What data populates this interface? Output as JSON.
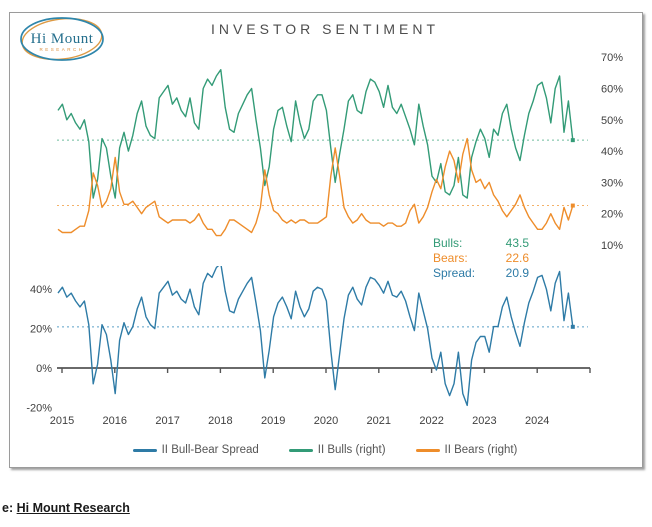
{
  "header": {
    "title": "INVESTOR SENTIMENT",
    "logo_line1": "Hi Mount",
    "logo_line2": "RESEARCH"
  },
  "source": {
    "prefix": "e:",
    "link_text": "Hi Mount Research"
  },
  "annotation": {
    "rows": [
      {
        "label": "Bulls:",
        "value": "43.5",
        "series": "bulls"
      },
      {
        "label": "Bears:",
        "value": "22.6",
        "series": "bears"
      },
      {
        "label": "Spread:",
        "value": "20.9",
        "series": "spread"
      }
    ]
  },
  "legend": {
    "items": [
      {
        "label": "II Bull-Bear Spread",
        "series": "spread"
      },
      {
        "label": "II Bulls (right)",
        "series": "bulls"
      },
      {
        "label": "II Bears (right)",
        "series": "bears"
      }
    ]
  },
  "colors": {
    "bulls": "#339b77",
    "bears": "#ee8d2b",
    "spread": "#2e7ba6",
    "bulls_ref": "#6fbc9e",
    "bears_ref": "#f4b269",
    "spread_ref": "#5aa0c8",
    "axis": "#555555",
    "title": "#4d4d4d",
    "logo_teal": "#2e86ab",
    "logo_orange": "#dd9a44"
  },
  "chart_data": {
    "type": "line",
    "title": "INVESTOR SENTIMENT",
    "x_start_year": 2015,
    "cadence": "monthly",
    "x_tick_labels": [
      "2015",
      "2016",
      "2017",
      "2018",
      "2019",
      "2020",
      "2021",
      "2022",
      "2023",
      "2024"
    ],
    "panels": [
      {
        "name": "sentiment",
        "axis_side": "right",
        "ylim": [
          8,
          72
        ],
        "yticks": [
          {
            "v": 70,
            "label": "70%"
          },
          {
            "v": 60,
            "label": "60%"
          },
          {
            "v": 50,
            "label": "50%"
          },
          {
            "v": 40,
            "label": "40%"
          },
          {
            "v": 30,
            "label": "30%"
          },
          {
            "v": 20,
            "label": "20%"
          },
          {
            "v": 10,
            "label": "10%"
          }
        ],
        "grid": false,
        "reference_lines": [
          {
            "value": 43.5,
            "series": "bulls"
          },
          {
            "value": 22.6,
            "series": "bears"
          }
        ],
        "series": [
          {
            "name": "II Bulls (right)",
            "key": "bulls",
            "current": 43.5,
            "values": [
              53,
              55,
              50,
              52,
              49,
              47,
              50,
              43,
              25,
              31,
              44,
              41,
              32,
              25,
              41,
              46,
              40,
              45,
              52,
              56,
              48,
              45,
              44,
              57,
              59,
              61,
              55,
              57,
              53,
              51,
              57,
              49,
              47,
              60,
              63,
              61,
              64,
              66,
              54,
              47,
              46,
              52,
              55,
              58,
              60,
              50,
              41,
              29,
              35,
              47,
              53,
              54,
              48,
              43,
              56,
              49,
              44,
              47,
              56,
              58,
              58,
              53,
              41,
              30,
              39,
              47,
              56,
              58,
              53,
              52,
              59,
              63,
              62,
              59,
              54,
              61,
              54,
              52,
              55,
              51,
              47,
              42,
              55,
              48,
              42,
              32,
              30,
              36,
              27,
              26,
              29,
              38,
              26,
              25,
              38,
              43,
              47,
              44,
              38,
              47,
              45,
              52,
              55,
              47,
              41,
              37,
              45,
              52,
              56,
              61,
              62,
              57,
              49,
              60,
              64,
              46,
              56,
              43.5
            ]
          },
          {
            "name": "II Bears (right)",
            "key": "bears",
            "current": 22.6,
            "values": [
              15,
              14,
              14,
              14,
              15,
              16,
              16,
              21,
              33,
              29,
              22,
              24,
              28,
              38,
              27,
              23,
              23,
              24,
              22,
              20,
              22,
              23,
              24,
              19,
              18,
              17,
              18,
              18,
              18,
              18,
              17,
              18,
              20,
              17,
              15,
              15,
              13,
              13,
              15,
              18,
              18,
              17,
              16,
              15,
              14,
              17,
              22,
              34,
              26,
              21,
              20,
              18,
              17,
              18,
              17,
              18,
              18,
              17,
              17,
              17,
              18,
              19,
              32,
              41,
              32,
              22,
              19,
              17,
              18,
              20,
              18,
              17,
              17,
              17,
              16,
              17,
              17,
              16,
              16,
              17,
              21,
              23,
              17,
              19,
              22,
              27,
              31,
              28,
              35,
              40,
              37,
              30,
              39,
              44,
              34,
              30,
              31,
              28,
              30,
              26,
              24,
              21,
              19,
              21,
              23,
              26,
              22,
              19,
              17,
              15,
              15,
              17,
              20,
              17,
              15,
              22,
              18,
              22.6
            ]
          }
        ]
      },
      {
        "name": "spread",
        "axis_side": "left",
        "ylim": [
          -25,
          52
        ],
        "yticks": [
          {
            "v": 40,
            "label": "40%"
          },
          {
            "v": 20,
            "label": "20%"
          },
          {
            "v": 0,
            "label": "0%"
          },
          {
            "v": -20,
            "label": "-20%"
          }
        ],
        "grid": false,
        "reference_lines": [
          {
            "value": 20.9,
            "series": "spread"
          }
        ],
        "series": [
          {
            "name": "II Bull-Bear Spread",
            "key": "spread",
            "current": 20.9,
            "values": [
              38,
              41,
              36,
              38,
              34,
              31,
              34,
              22,
              -8,
              2,
              22,
              17,
              4,
              -13,
              14,
              23,
              17,
              21,
              30,
              36,
              26,
              22,
              20,
              38,
              41,
              44,
              37,
              39,
              35,
              33,
              40,
              31,
              27,
              43,
              48,
              46,
              51,
              53,
              39,
              29,
              28,
              35,
              39,
              43,
              46,
              33,
              19,
              -5,
              9,
              26,
              33,
              36,
              31,
              25,
              39,
              31,
              26,
              30,
              39,
              41,
              40,
              34,
              9,
              -11,
              7,
              25,
              37,
              41,
              35,
              32,
              41,
              46,
              45,
              42,
              38,
              44,
              37,
              36,
              39,
              34,
              26,
              19,
              38,
              29,
              20,
              5,
              -1,
              8,
              -8,
              -14,
              -8,
              8,
              -13,
              -19,
              4,
              13,
              16,
              16,
              8,
              21,
              21,
              31,
              36,
              26,
              18,
              11,
              23,
              33,
              39,
              46,
              47,
              40,
              29,
              43,
              49,
              24,
              38,
              20.9
            ]
          }
        ]
      }
    ],
    "current_values": {
      "bulls": 43.5,
      "bears": 22.6,
      "spread": 20.9
    }
  }
}
